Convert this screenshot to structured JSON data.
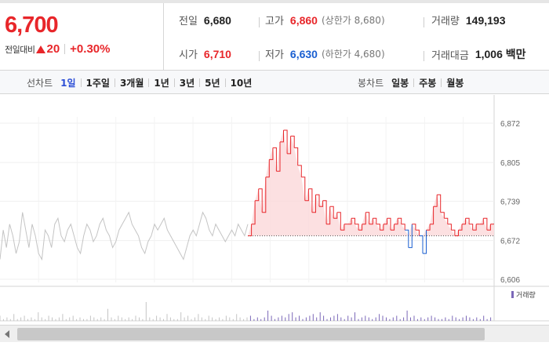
{
  "summary": {
    "current_price": "6,700",
    "change_label": "전일대비",
    "change_value": "20",
    "change_rate": "+0.30%",
    "prev_close_label": "전일",
    "prev_close": "6,680",
    "open_label": "시가",
    "open": "6,710",
    "high_label": "고가",
    "high": "6,860",
    "upper_limit": "(상한가 8,680)",
    "low_label": "저가",
    "low": "6,630",
    "lower_limit": "(하한가 4,680)",
    "volume_label": "거래량",
    "volume": "149,193",
    "amount_label": "거래대금",
    "amount": "1,006 백만"
  },
  "period_bar": {
    "line_label": "선차트",
    "line_periods": [
      "1일",
      "1주일",
      "3개월",
      "1년",
      "3년",
      "5년",
      "10년"
    ],
    "active_period": "1일",
    "candle_label": "봉차트",
    "candle_periods": [
      "일봉",
      "주봉",
      "월봉"
    ]
  },
  "colors": {
    "up": "#e8262a",
    "down": "#1a5fd1",
    "prev_session": "#c4c4c4",
    "volume": "#7b68b8",
    "active_tab": "#2d4fd6"
  },
  "chart_data": {
    "type": "line",
    "title": "",
    "xlabel": "",
    "ylabel": "",
    "ylim": [
      6606,
      6872
    ],
    "y_ticks": [
      "6,872",
      "6,805",
      "6,739",
      "6,672",
      "6,606"
    ],
    "y_tick_values": [
      6872,
      6805,
      6739,
      6672,
      6606
    ],
    "baseline": 6680,
    "grid": true,
    "legend": "bottom-right",
    "volume_legend": "거래량",
    "series": [
      {
        "role": "previous",
        "values": [
          6640,
          6690,
          6660,
          6700,
          6680,
          6650,
          6670,
          6720,
          6690,
          6660,
          6700,
          6680,
          6650,
          6640,
          6690,
          6680,
          6660,
          6700,
          6710,
          6680,
          6670,
          6690,
          6700,
          6680,
          6660,
          6650,
          6680,
          6700,
          6690,
          6670,
          6680,
          6700,
          6710,
          6690,
          6680,
          6660,
          6670,
          6690,
          6700,
          6710,
          6720,
          6700,
          6690,
          6680,
          6660,
          6650,
          6670,
          6680,
          6700,
          6690,
          6700,
          6710,
          6690,
          6680,
          6670,
          6660,
          6650,
          6640,
          6660,
          6680,
          6690,
          6680,
          6700,
          6720,
          6710,
          6690,
          6680,
          6700,
          6690,
          6680,
          6670,
          6680,
          6690,
          6680,
          6700,
          6690,
          6680,
          6700
        ]
      },
      {
        "role": "today",
        "values": [
          6680,
          6700,
          6740,
          6760,
          6720,
          6780,
          6810,
          6830,
          6790,
          6840,
          6860,
          6820,
          6850,
          6830,
          6800,
          6780,
          6740,
          6760,
          6720,
          6750,
          6730,
          6740,
          6700,
          6730,
          6710,
          6720,
          6690,
          6700,
          6700,
          6710,
          6700,
          6690,
          6700,
          6720,
          6700,
          6710,
          6700,
          6690,
          6700,
          6710,
          6690,
          6700,
          6710,
          6700,
          6690,
          6660,
          6700,
          6690,
          6680,
          6650,
          6690,
          6700,
          6730,
          6750,
          6720,
          6710,
          6700,
          6690,
          6680,
          6690,
          6700,
          6710,
          6700,
          6690,
          6700,
          6700,
          6710,
          6690,
          6700,
          6700
        ]
      }
    ],
    "volume": [
      3,
      1,
      2,
      1,
      4,
      1,
      2,
      3,
      1,
      2,
      1,
      5,
      2,
      1,
      3,
      2,
      1,
      2,
      4,
      1,
      2,
      3,
      1,
      2,
      1,
      1,
      3,
      2,
      1,
      2,
      1,
      7,
      2,
      1,
      3,
      2,
      1,
      2,
      1,
      3,
      2,
      1,
      11,
      2,
      1,
      3,
      2,
      1,
      4,
      2,
      1,
      1,
      5,
      2,
      3,
      1,
      2,
      4,
      2,
      1,
      3,
      2,
      1,
      2,
      1,
      3,
      2,
      1,
      4,
      2,
      1,
      2,
      3,
      1,
      2,
      1,
      2,
      6,
      3,
      1,
      2,
      3,
      2,
      4,
      5,
      2,
      3,
      1,
      2,
      3,
      4,
      2,
      5,
      3,
      1,
      2,
      3,
      4,
      2,
      1,
      3,
      2,
      5,
      1,
      2,
      3,
      2,
      1,
      2,
      4,
      3,
      2,
      1,
      2,
      3,
      1,
      2,
      6,
      2,
      3,
      1,
      2,
      1,
      2,
      3,
      2,
      1,
      1,
      2,
      1,
      3,
      2,
      1,
      2,
      3,
      2,
      1,
      2,
      1,
      3,
      1,
      2
    ]
  }
}
